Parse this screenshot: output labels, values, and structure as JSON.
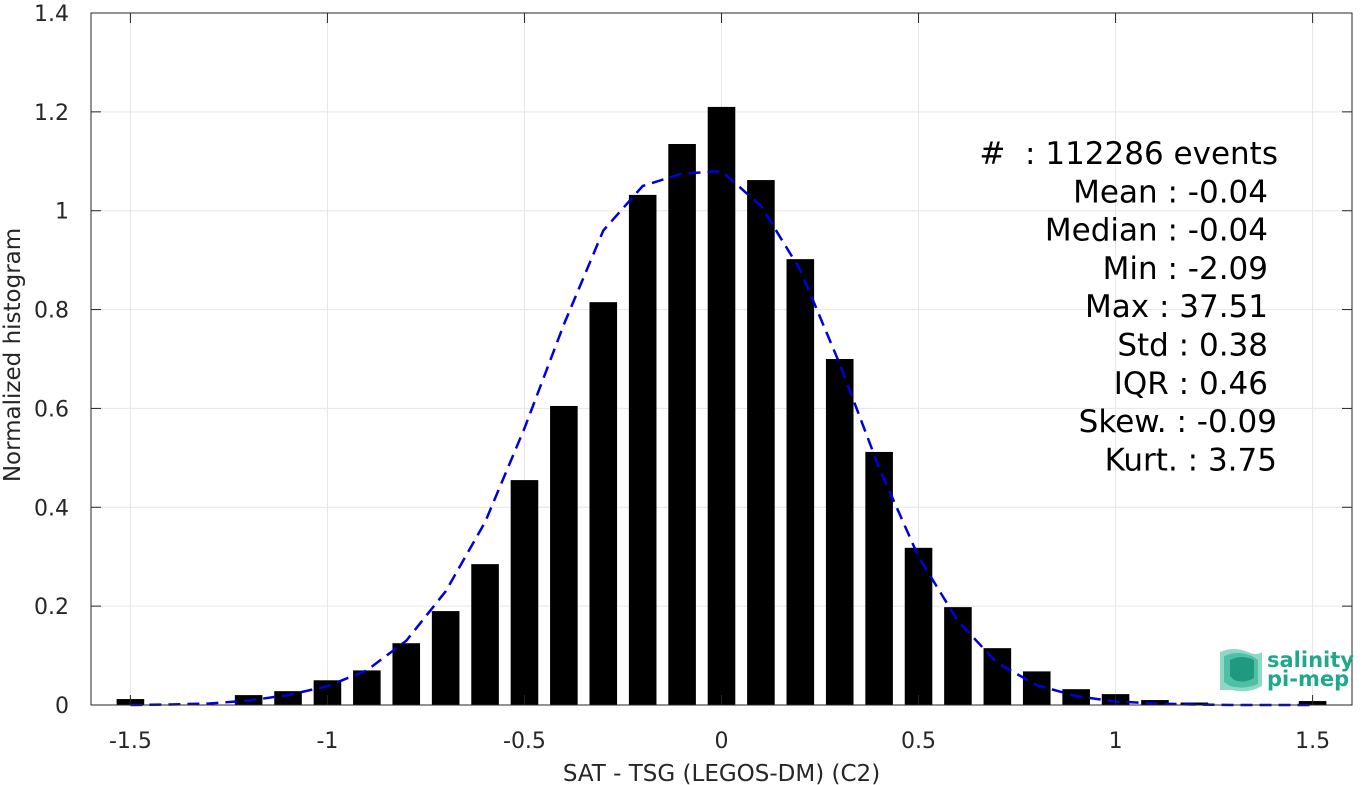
{
  "chart_data": {
    "type": "bar",
    "xlabel": "SAT - TSG (LEGOS-DM) (C2)",
    "ylabel": "Normalized histogram",
    "xlim": [
      -1.6,
      1.6
    ],
    "ylim": [
      0,
      1.4
    ],
    "xticks": [
      -1.5,
      -1,
      -0.5,
      0,
      0.5,
      1,
      1.5
    ],
    "xtick_labels": [
      "-1.5",
      "-1",
      "-0.5",
      "0",
      "0.5",
      "1",
      "1.5"
    ],
    "yticks": [
      0,
      0.2,
      0.4,
      0.6,
      0.8,
      1,
      1.2,
      1.4
    ],
    "ytick_labels": [
      "0",
      "0.2",
      "0.4",
      "0.6",
      "0.8",
      "1",
      "1.2",
      "1.4"
    ],
    "grid": true,
    "bin_width": 0.1,
    "bars": {
      "x": [
        -1.5,
        -1.2,
        -1.1,
        -1.0,
        -0.9,
        -0.8,
        -0.7,
        -0.6,
        -0.5,
        -0.4,
        -0.3,
        -0.2,
        -0.1,
        0.0,
        0.1,
        0.2,
        0.3,
        0.4,
        0.5,
        0.6,
        0.7,
        0.8,
        0.9,
        1.0,
        1.1,
        1.2,
        1.5
      ],
      "values": [
        0.012,
        0.02,
        0.028,
        0.05,
        0.07,
        0.125,
        0.19,
        0.285,
        0.455,
        0.605,
        0.815,
        1.032,
        1.135,
        1.21,
        1.062,
        0.902,
        0.7,
        0.512,
        0.318,
        0.198,
        0.115,
        0.068,
        0.032,
        0.022,
        0.01,
        0.005,
        0.008
      ],
      "color": "#000000"
    },
    "fit_curve": {
      "style": "dashed",
      "color": "#0000dd",
      "x": [
        -1.5,
        -1.4,
        -1.3,
        -1.2,
        -1.1,
        -1.0,
        -0.9,
        -0.8,
        -0.7,
        -0.6,
        -0.5,
        -0.4,
        -0.3,
        -0.2,
        -0.1,
        0.0,
        0.1,
        0.2,
        0.3,
        0.4,
        0.5,
        0.6,
        0.7,
        0.8,
        0.9,
        1.0,
        1.1,
        1.2,
        1.3,
        1.4,
        1.5
      ],
      "y": [
        0.0,
        0.001,
        0.003,
        0.009,
        0.02,
        0.038,
        0.07,
        0.13,
        0.23,
        0.37,
        0.56,
        0.77,
        0.96,
        1.05,
        1.075,
        1.08,
        1.01,
        0.88,
        0.69,
        0.48,
        0.3,
        0.17,
        0.085,
        0.04,
        0.018,
        0.007,
        0.003,
        0.001,
        0.0,
        0.0,
        0.0
      ]
    },
    "annotations": [
      "#  : 112286 events",
      "Mean : -0.04",
      "Median : -0.04",
      "Min : -2.09",
      "Max : 37.51",
      "Std : 0.38",
      "IQR : 0.46",
      "Skew. : -0.09",
      "Kurt. : 3.75"
    ]
  },
  "logo": {
    "line1": "salinity",
    "line2": "pi-mep",
    "color": "#1fa88a"
  }
}
